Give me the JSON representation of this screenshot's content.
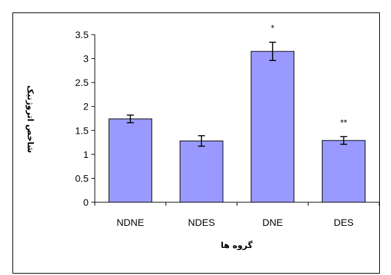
{
  "chart_data": {
    "type": "bar",
    "categories": [
      "NDNE",
      "NDES",
      "DNE",
      "DES"
    ],
    "values": [
      1.74,
      1.28,
      3.15,
      1.29
    ],
    "error": [
      0.08,
      0.11,
      0.19,
      0.08
    ],
    "annotations": [
      "",
      "",
      "*",
      "**"
    ],
    "xlabel": "گروه ها",
    "ylabel": "شاخص اتروژنیک",
    "ylim": [
      0,
      3.5
    ],
    "yticks": [
      "0",
      "0.5",
      "1",
      "1.5",
      "2",
      "2.5",
      "3",
      "3.5"
    ],
    "bar_color": "#9999ff",
    "grid": false,
    "legend": "none"
  }
}
